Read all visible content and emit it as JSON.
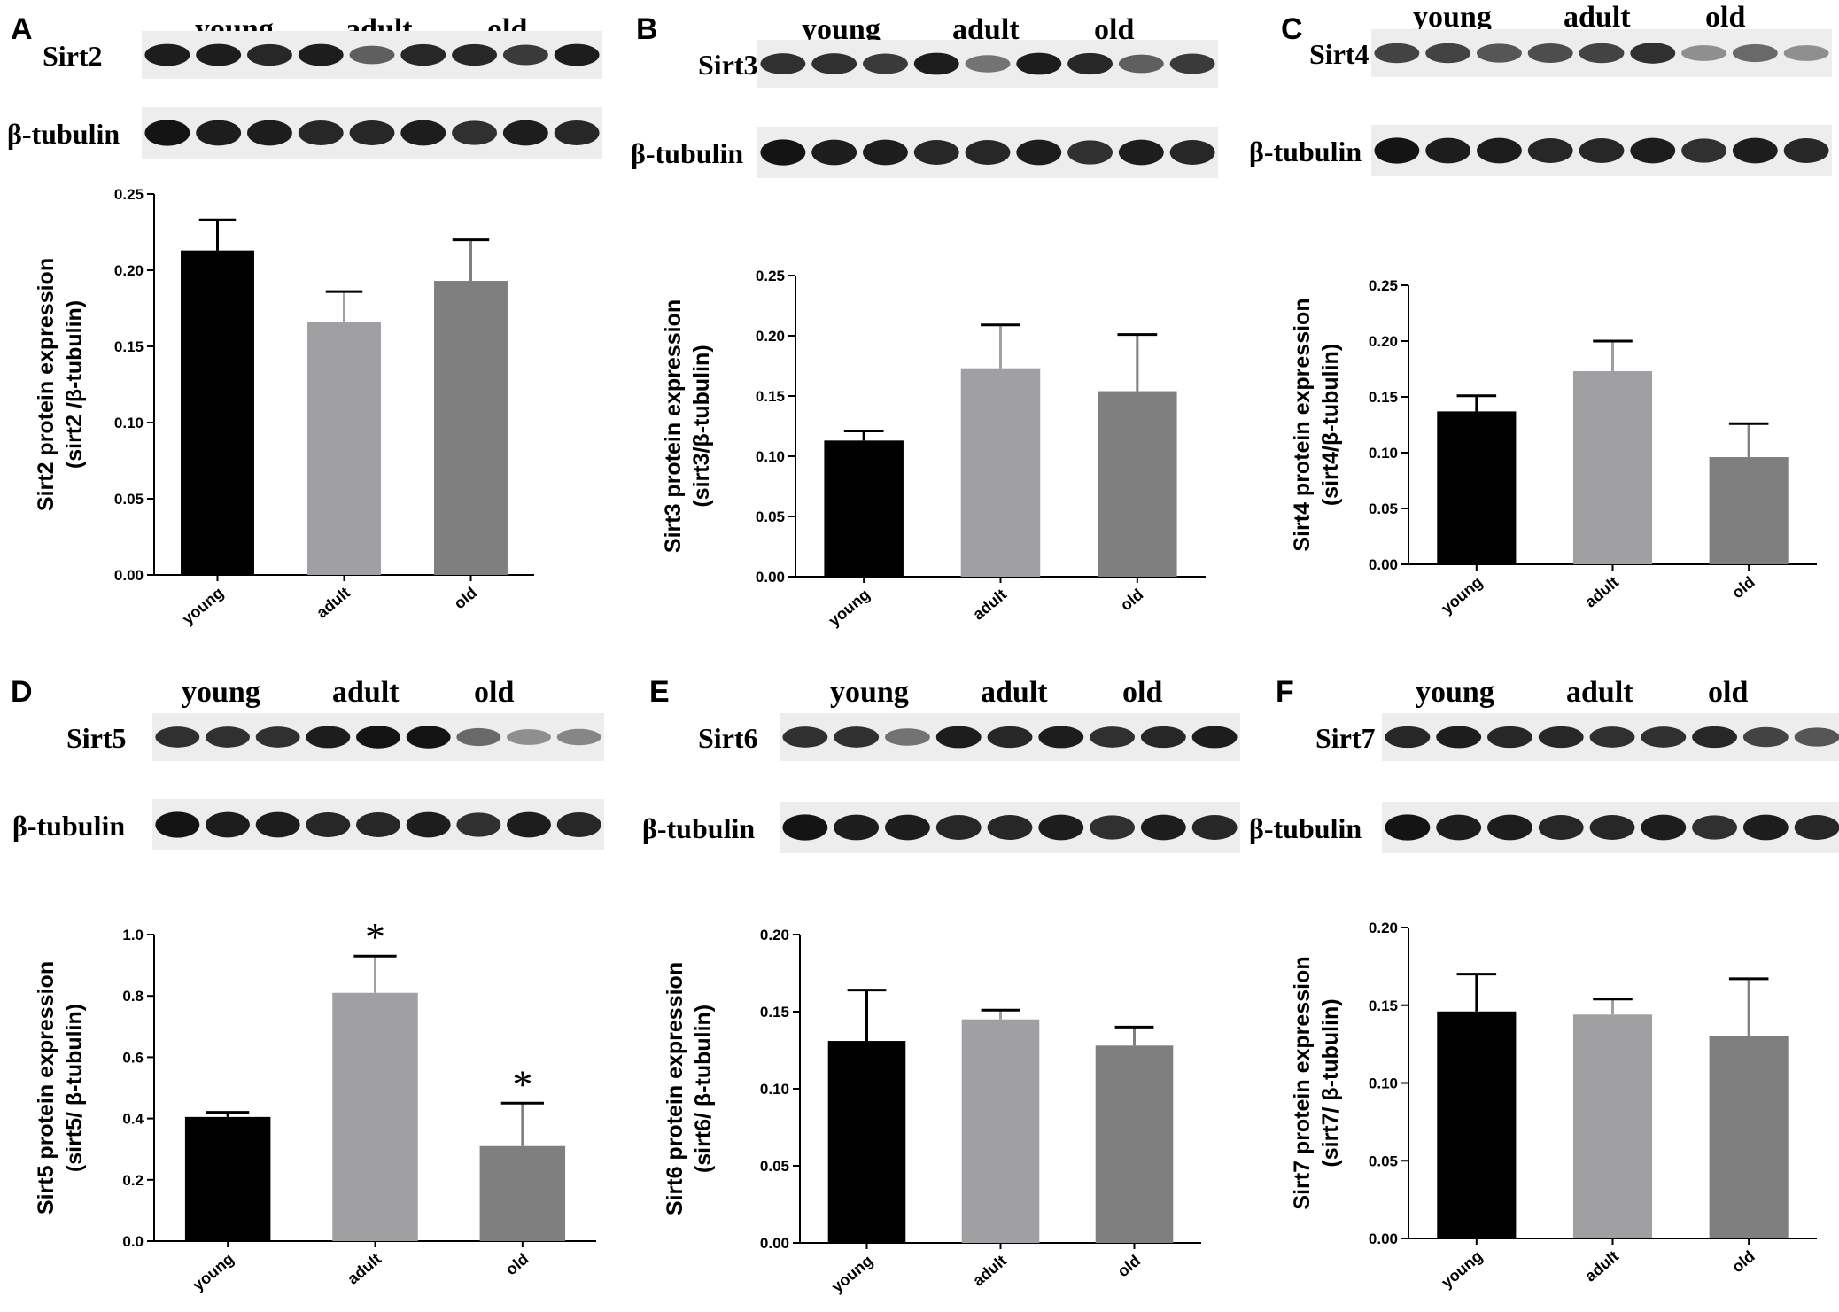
{
  "group_labels": [
    "young",
    "adult",
    "old"
  ],
  "loading_control": "β-tubulin",
  "colors": {
    "young": "#000000",
    "adult": "#a0a0a2",
    "old": "#7f7f7f",
    "blot_bg": "#ededed",
    "band": "#141414"
  },
  "panels": [
    {
      "letter": "A",
      "protein": "Sirt2",
      "tubulin_label": "β-tubulin",
      "band_intensities": [
        0.9,
        0.9,
        0.85,
        0.9,
        0.55,
        0.85,
        0.85,
        0.75,
        0.9
      ],
      "tubulin_intensities": [
        0.95,
        0.9,
        0.9,
        0.85,
        0.85,
        0.9,
        0.8,
        0.9,
        0.85
      ],
      "chart_data": {
        "type": "bar",
        "categories": [
          "young",
          "adult",
          "old"
        ],
        "values": [
          0.213,
          0.166,
          0.193
        ],
        "errors": [
          0.02,
          0.02,
          0.027
        ],
        "ylabel_line1": "Sirt2 protein expression",
        "ylabel_line2": "(sirt2 /β-tubulin)",
        "ylim": [
          0,
          0.25
        ],
        "yticks": [
          "0.00",
          "0.05",
          "0.10",
          "0.15",
          "0.20",
          "0.25"
        ],
        "annotations": [
          "",
          "",
          ""
        ]
      }
    },
    {
      "letter": "B",
      "protein": "Sirt3",
      "tubulin_label": "β-tubulin",
      "band_intensities": [
        0.8,
        0.8,
        0.75,
        0.9,
        0.45,
        0.9,
        0.85,
        0.55,
        0.75
      ],
      "tubulin_intensities": [
        0.95,
        0.9,
        0.9,
        0.85,
        0.85,
        0.9,
        0.8,
        0.9,
        0.85
      ],
      "chart_data": {
        "type": "bar",
        "categories": [
          "young",
          "adult",
          "old"
        ],
        "values": [
          0.113,
          0.173,
          0.154
        ],
        "errors": [
          0.008,
          0.036,
          0.047
        ],
        "ylabel_line1": "Sirt3 protein expression",
        "ylabel_line2": "(sirt3/β-tubulin)",
        "ylim": [
          0,
          0.25
        ],
        "yticks": [
          "0.00",
          "0.05",
          "0.10",
          "0.15",
          "0.20",
          "0.25"
        ],
        "annotations": [
          "",
          "",
          ""
        ]
      }
    },
    {
      "letter": "C",
      "protein": "Sirt4",
      "tubulin_label": "β-tubulin",
      "band_intensities": [
        0.7,
        0.7,
        0.6,
        0.65,
        0.7,
        0.8,
        0.3,
        0.5,
        0.3
      ],
      "tubulin_intensities": [
        0.95,
        0.9,
        0.9,
        0.85,
        0.85,
        0.9,
        0.8,
        0.9,
        0.85
      ],
      "chart_data": {
        "type": "bar",
        "categories": [
          "young",
          "adult",
          "old"
        ],
        "values": [
          0.137,
          0.173,
          0.096
        ],
        "errors": [
          0.014,
          0.027,
          0.03
        ],
        "ylabel_line1": "Sirt4 protein expression",
        "ylabel_line2": "(sirt4/β-tubulin)",
        "ylim": [
          0,
          0.25
        ],
        "yticks": [
          "0.00",
          "0.05",
          "0.10",
          "0.15",
          "0.20",
          "0.25"
        ],
        "annotations": [
          "",
          "",
          ""
        ]
      }
    },
    {
      "letter": "D",
      "protein": "Sirt5",
      "tubulin_label": "β-tubulin",
      "band_intensities": [
        0.8,
        0.8,
        0.8,
        0.9,
        0.95,
        0.95,
        0.5,
        0.3,
        0.35
      ],
      "tubulin_intensities": [
        0.95,
        0.9,
        0.9,
        0.85,
        0.85,
        0.9,
        0.8,
        0.9,
        0.85
      ],
      "chart_data": {
        "type": "bar",
        "categories": [
          "young",
          "adult",
          "old"
        ],
        "values": [
          0.405,
          0.81,
          0.31
        ],
        "errors": [
          0.015,
          0.12,
          0.14
        ],
        "ylabel_line1": "Sirt5 protein expression",
        "ylabel_line2": "(sirt5/ β-tubulin)",
        "ylim": [
          0,
          1.0
        ],
        "yticks": [
          "0.0",
          "0.2",
          "0.4",
          "0.6",
          "0.8",
          "1.0"
        ],
        "annotations": [
          "",
          "*",
          "*"
        ]
      }
    },
    {
      "letter": "E",
      "protein": "Sirt6",
      "tubulin_label": "β-tubulin",
      "band_intensities": [
        0.8,
        0.8,
        0.45,
        0.9,
        0.85,
        0.9,
        0.8,
        0.85,
        0.9
      ],
      "tubulin_intensities": [
        0.95,
        0.9,
        0.9,
        0.85,
        0.85,
        0.9,
        0.8,
        0.9,
        0.85
      ],
      "chart_data": {
        "type": "bar",
        "categories": [
          "young",
          "adult",
          "old"
        ],
        "values": [
          0.131,
          0.145,
          0.128
        ],
        "errors": [
          0.033,
          0.006,
          0.012
        ],
        "ylabel_line1": "Sirt6 protein expression",
        "ylabel_line2": "(sirt6/ β-tubulin)",
        "ylim": [
          0,
          0.2
        ],
        "yticks": [
          "0.00",
          "0.05",
          "0.10",
          "0.15",
          "0.20"
        ],
        "annotations": [
          "",
          "",
          ""
        ]
      }
    },
    {
      "letter": "F",
      "protein": "Sirt7",
      "tubulin_label": "β-tubulin",
      "band_intensities": [
        0.85,
        0.9,
        0.85,
        0.85,
        0.8,
        0.8,
        0.85,
        0.7,
        0.6
      ],
      "tubulin_intensities": [
        0.95,
        0.9,
        0.9,
        0.85,
        0.85,
        0.9,
        0.8,
        0.9,
        0.85
      ],
      "chart_data": {
        "type": "bar",
        "categories": [
          "young",
          "adult",
          "old"
        ],
        "values": [
          0.146,
          0.144,
          0.13
        ],
        "errors": [
          0.024,
          0.01,
          0.037
        ],
        "ylabel_line1": "Sirt7 protein expression",
        "ylabel_line2": "(sirt7/ β-tubulin)",
        "ylim": [
          0,
          0.2
        ],
        "yticks": [
          "0.00",
          "0.05",
          "0.10",
          "0.15",
          "0.20"
        ],
        "annotations": [
          "",
          "",
          ""
        ]
      }
    }
  ]
}
